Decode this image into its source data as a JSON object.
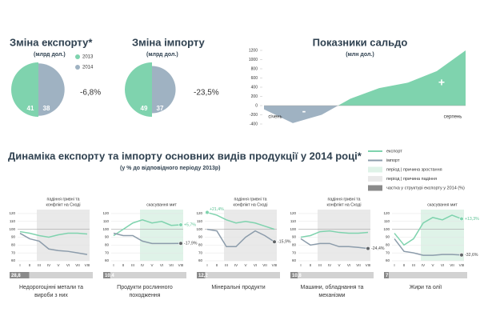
{
  "chart_data": [
    {
      "type": "half-pie",
      "title": "Зміна експорту*",
      "subtitle": "(млрд дол.)",
      "values": [
        41,
        38
      ],
      "colors": [
        "#7fd3ae",
        "#9fb2c2"
      ],
      "legend": [
        "2013",
        "2014"
      ],
      "annotation": "-6,8%"
    },
    {
      "type": "half-pie",
      "title": "Зміна імпорту",
      "subtitle": "(млрд дол.)",
      "values": [
        49,
        37
      ],
      "colors": [
        "#7fd3ae",
        "#9fb2c2"
      ],
      "annotation": "-23,5%"
    },
    {
      "type": "area",
      "title": "Показники сальдо",
      "subtitle": "(млн дол.)",
      "categories": [
        "січень",
        null,
        null,
        null,
        null,
        null,
        null,
        "серпень"
      ],
      "values": [
        -80,
        -380,
        -200,
        150,
        380,
        500,
        750,
        1200
      ],
      "colors": [
        "#7fd3ae",
        "#9fb2c2"
      ],
      "ylim": [
        -400,
        1200
      ],
      "yticks": [
        -400,
        -200,
        0,
        200,
        400,
        600,
        800,
        1000,
        1200
      ],
      "annotations": [
        "-",
        "+"
      ]
    },
    {
      "type": "line",
      "categories": [
        "I",
        "II",
        "III",
        "IV",
        "V",
        "VI",
        "VII",
        "VIII"
      ],
      "ylim": [
        60,
        125
      ],
      "yticks": [
        60,
        70,
        80,
        90,
        100,
        110,
        120
      ],
      "reference_line": 100,
      "highlight": {
        "from": "III",
        "to": "VIII",
        "kind": "decline",
        "label": [
          "падіння гривні та",
          "конфлікт на Сході"
        ]
      },
      "series": [
        {
          "color": "#7fd3ae",
          "values": [
            97,
            95,
            92,
            90,
            93,
            95,
            95,
            94
          ]
        },
        {
          "color": "#8c9cab",
          "values": [
            95,
            88,
            85,
            75,
            73,
            72,
            70,
            68
          ]
        }
      ],
      "share": {
        "value": 28.8,
        "label": "28,8"
      },
      "name": [
        "Недорогоцінні метали та",
        "вироби з них"
      ]
    },
    {
      "type": "line",
      "categories": [
        "I",
        "II",
        "III",
        "IV",
        "V",
        "VI",
        "VII",
        "VIII"
      ],
      "ylim": [
        60,
        125
      ],
      "yticks": [
        60,
        70,
        80,
        90,
        100,
        110,
        120
      ],
      "reference_line": 100,
      "highlight": {
        "from": "IV",
        "to": "VIII",
        "kind": "growth",
        "label": [
          "скасування мит"
        ]
      },
      "series": [
        {
          "color": "#7fd3ae",
          "values": [
            92,
            100,
            108,
            112,
            108,
            110,
            105,
            105.7
          ],
          "end_label": "+5,7%"
        },
        {
          "color": "#8c9cab",
          "values": [
            95,
            92,
            92,
            85,
            82,
            82,
            82,
            82.1
          ],
          "end_label": "-17,9%"
        }
      ],
      "share": {
        "value": 10.4,
        "label": "10,4"
      },
      "name": [
        "Продукти рослинного",
        "походження"
      ]
    },
    {
      "type": "line",
      "categories": [
        "I",
        "II",
        "III",
        "IV",
        "V",
        "VI",
        "VII",
        "VIII"
      ],
      "ylim": [
        60,
        125
      ],
      "yticks": [
        60,
        70,
        80,
        90,
        100,
        110,
        120
      ],
      "reference_line": 100,
      "highlight": {
        "from": "III",
        "to": "VIII",
        "kind": "decline",
        "label": [
          "падіння гривні та",
          "конфлікт на Сході"
        ]
      },
      "series": [
        {
          "color": "#7fd3ae",
          "values": [
            121.4,
            118,
            112,
            108,
            110,
            108,
            104,
            100
          ],
          "start_label": "+21,4%"
        },
        {
          "color": "#8c9cab",
          "values": [
            100,
            98,
            78,
            78,
            90,
            98,
            92,
            84.1
          ],
          "end_label": "-15,9%"
        }
      ],
      "share": {
        "value": 12.2,
        "label": "12,2"
      },
      "name": [
        "Мінеральні продукти"
      ]
    },
    {
      "type": "line",
      "categories": [
        "I",
        "II",
        "III",
        "IV",
        "V",
        "VI",
        "VII",
        "VIII"
      ],
      "ylim": [
        60,
        125
      ],
      "yticks": [
        60,
        70,
        80,
        90,
        100,
        110,
        120
      ],
      "reference_line": 100,
      "highlight": {
        "from": "III",
        "to": "VIII",
        "kind": "decline",
        "label": [
          "падіння гривні та",
          "конфлікт на Сході"
        ]
      },
      "series": [
        {
          "color": "#7fd3ae",
          "values": [
            90,
            92,
            97,
            98,
            96,
            95,
            95,
            96
          ]
        },
        {
          "color": "#8c9cab",
          "values": [
            88,
            80,
            82,
            82,
            78,
            78,
            77,
            75.6
          ],
          "end_label": "-24,4%"
        }
      ],
      "share": {
        "value": 10.8,
        "label": "10,8"
      },
      "name": [
        "Машини, обладнання та",
        "механізми"
      ]
    },
    {
      "type": "line",
      "categories": [
        "I",
        "II",
        "III",
        "IV",
        "V",
        "VI",
        "VII",
        "VIII"
      ],
      "ylim": [
        60,
        125
      ],
      "yticks": [
        60,
        70,
        80,
        90,
        100,
        110,
        120
      ],
      "reference_line": 100,
      "highlight": {
        "from": "IV",
        "to": "VIII",
        "kind": "growth",
        "label": [
          "скасування мит"
        ]
      },
      "series": [
        {
          "color": "#7fd3ae",
          "values": [
            95,
            80,
            88,
            108,
            115,
            112,
            118,
            113.3
          ],
          "end_label": "+13,3%"
        },
        {
          "color": "#8c9cab",
          "values": [
            88,
            72,
            70,
            67,
            67,
            68,
            68,
            67.4
          ],
          "end_label": "-32,6%"
        }
      ],
      "share": {
        "value": 7,
        "label": "7"
      },
      "name": [
        "Жири та олії"
      ]
    }
  ],
  "dynamics": {
    "title": "Динаміка експорту та імпорту основних видів продукції у 2014 році*",
    "subtitle": "(у % до відповідного періоду 2013р)",
    "legend": [
      {
        "label": "експорт",
        "kind": "export"
      },
      {
        "label": "імпорт",
        "kind": "import"
      },
      {
        "label": "період | причина зростання",
        "kind": "growth"
      },
      {
        "label": "період | причина падіння",
        "kind": "decline"
      },
      {
        "label": "частка у структурі експорту у 2014 (%)",
        "kind": "share"
      }
    ]
  }
}
